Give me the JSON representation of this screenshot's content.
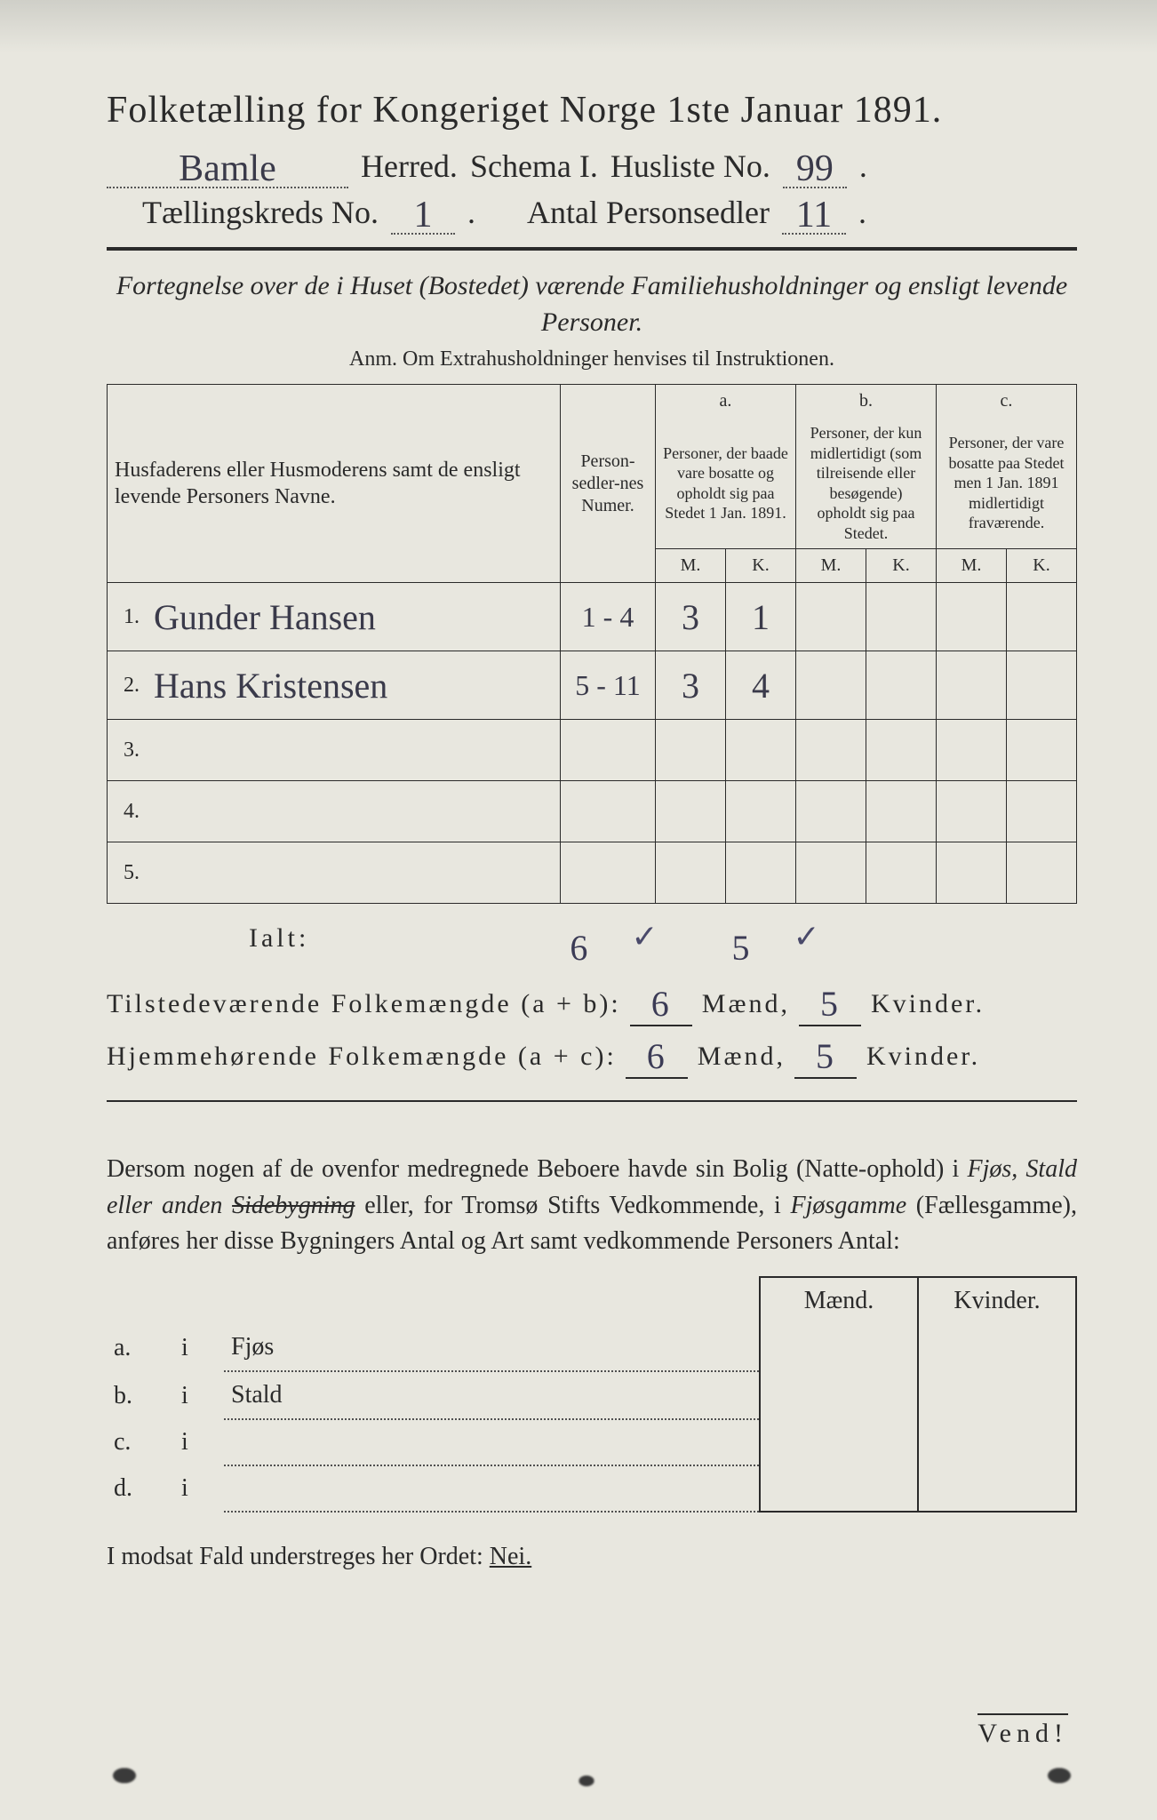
{
  "colors": {
    "page_bg": "#e8e7df",
    "outer_bg": "#bfbfbf",
    "ink": "#2a2a2a",
    "handwriting": "#3a3a4a"
  },
  "typography": {
    "title_fontsize_pt": 32,
    "body_fontsize_pt": 22,
    "handwriting_font": "Brush Script MT"
  },
  "header": {
    "title": "Folketælling for Kongeriget Norge 1ste Januar 1891.",
    "herred_value": "Bamle",
    "herred_label": "Herred.",
    "schema_label": "Schema I.",
    "husliste_label": "Husliste No.",
    "husliste_no": "99",
    "kreds_label": "Tællingskreds No.",
    "kreds_no": "1",
    "antal_label": "Antal Personsedler",
    "antal_val": "11"
  },
  "intro": {
    "line1": "Fortegnelse over de i Huset (Bostedet) værende Familiehusholdninger og ensligt levende Personer.",
    "anm": "Anm. Om Extrahusholdninger henvises til Instruktionen."
  },
  "table": {
    "col_names": "Husfaderens eller Husmoderens samt de ensligt levende Personers Navne.",
    "col_numer": "Person-sedler-nes Numer.",
    "col_a_label": "a.",
    "col_a": "Personer, der baade vare bosatte og opholdt sig paa Stedet 1 Jan. 1891.",
    "col_b_label": "b.",
    "col_b": "Personer, der kun midlertidigt (som tilreisende eller besøgende) opholdt sig paa Stedet.",
    "col_c_label": "c.",
    "col_c": "Personer, der vare bosatte paa Stedet men 1 Jan. 1891 midlertidigt fraværende.",
    "M": "M.",
    "K": "K.",
    "rows": [
      {
        "n": "1.",
        "name": "Gunder Hansen",
        "numer": "1 - 4",
        "aM": "3",
        "aK": "1",
        "bM": "",
        "bK": "",
        "cM": "",
        "cK": ""
      },
      {
        "n": "2.",
        "name": "Hans Kristensen",
        "numer": "5 - 11",
        "aM": "3",
        "aK": "4",
        "bM": "",
        "bK": "",
        "cM": "",
        "cK": ""
      },
      {
        "n": "3.",
        "name": "",
        "numer": "",
        "aM": "",
        "aK": "",
        "bM": "",
        "bK": "",
        "cM": "",
        "cK": ""
      },
      {
        "n": "4.",
        "name": "",
        "numer": "",
        "aM": "",
        "aK": "",
        "bM": "",
        "bK": "",
        "cM": "",
        "cK": ""
      },
      {
        "n": "5.",
        "name": "",
        "numer": "",
        "aM": "",
        "aK": "",
        "bM": "",
        "bK": "",
        "cM": "",
        "cK": ""
      }
    ]
  },
  "totals": {
    "ialt_label": "Ialt:",
    "ialt_M": "6",
    "ialt_K": "5",
    "present_label": "Tilstedeværende Folkemængde (a + b):",
    "present_M": "6",
    "present_K": "5",
    "belong_label": "Hjemmehørende Folkemængde (a + c):",
    "belong_M": "6",
    "belong_K": "5",
    "maend": "Mænd,",
    "kvinder": "Kvinder."
  },
  "paragraph": {
    "text_1": "Dersom nogen af de ovenfor medregnede Beboere havde sin Bolig (Natte-ophold) i ",
    "it_1": "Fjøs, Stald eller anden ",
    "strike": "Sidebygning",
    "text_2": " eller, for Tromsø Stifts Vedkommende, i ",
    "it_2": "Fjøsgamme",
    "text_3": " (Fællesgamme), anføres her disse Bygningers Antal og Art samt vedkommende Personers Antal:"
  },
  "bldg": {
    "head_m": "Mænd.",
    "head_k": "Kvinder.",
    "rows": [
      {
        "lbl": "a.",
        "i": "i",
        "name": "Fjøs"
      },
      {
        "lbl": "b.",
        "i": "i",
        "name": "Stald"
      },
      {
        "lbl": "c.",
        "i": "i",
        "name": ""
      },
      {
        "lbl": "d.",
        "i": "i",
        "name": ""
      }
    ]
  },
  "nei": {
    "text": "I modsat Fald understreges her Ordet: ",
    "word": "Nei."
  },
  "vend": "Vend!"
}
